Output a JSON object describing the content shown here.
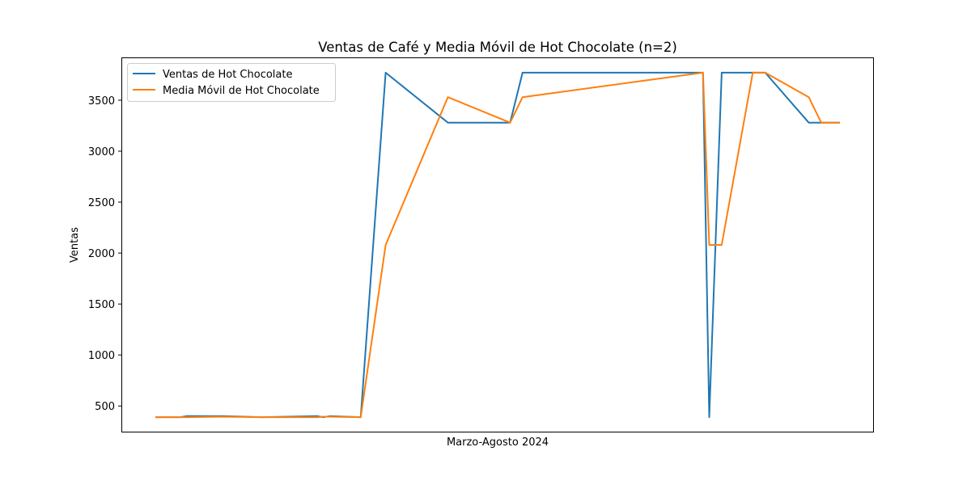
{
  "chart_data": {
    "type": "line",
    "title": "Ventas de Café y Media Móvil de Hot Chocolate (n=2)",
    "xlabel": "Marzo-Agosto 2024",
    "ylabel": "Ventas",
    "ylim": [
      240,
      3920
    ],
    "yticks": [
      500,
      1000,
      1500,
      2000,
      2500,
      3000,
      3500
    ],
    "ytick_labels": [
      "500",
      "1000",
      "1500",
      "2000",
      "2500",
      "3000",
      "3500"
    ],
    "xticks_visible": false,
    "grid": false,
    "legend_position": "upper-left",
    "series": [
      {
        "name": "Ventas de Hot Chocolate",
        "color": "#1f77b4",
        "x": [
          0,
          4,
          5,
          11,
          17,
          26,
          27,
          28,
          33,
          37,
          47,
          57,
          59,
          88,
          89,
          91,
          96,
          98,
          105,
          107,
          110
        ],
        "y": [
          390,
          390,
          400,
          400,
          390,
          400,
          390,
          400,
          390,
          3770,
          3280,
          3280,
          3770,
          3770,
          390,
          3770,
          3770,
          3770,
          3280,
          3280,
          3280
        ]
      },
      {
        "name": "Media Móvil de Hot Chocolate",
        "color": "#ff7f0e",
        "x": [
          0,
          4,
          5,
          11,
          17,
          26,
          27,
          28,
          33,
          37,
          47,
          57,
          59,
          88,
          89,
          91,
          96,
          98,
          105,
          107,
          110
        ],
        "y": [
          390,
          390,
          390,
          395,
          390,
          390,
          395,
          395,
          390,
          2080,
          3530,
          3280,
          3530,
          3770,
          2080,
          2080,
          3770,
          3770,
          3530,
          3280,
          3280
        ]
      }
    ]
  }
}
